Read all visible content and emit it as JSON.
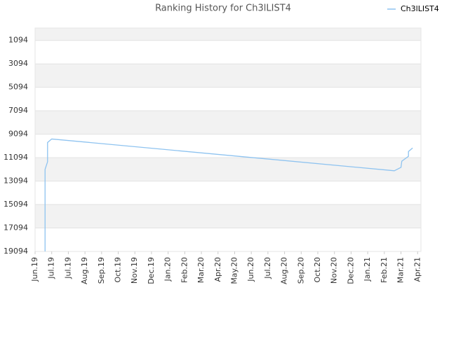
{
  "chart_data": {
    "type": "line",
    "title": "Ranking History for Ch3lLIST4",
    "xticks": [
      {
        "value": 0,
        "label": "Jun.19"
      },
      {
        "value": 1,
        "label": "Jul.19"
      },
      {
        "value": 2,
        "label": "Jul.19"
      },
      {
        "value": 3,
        "label": "Aug.19"
      },
      {
        "value": 4,
        "label": "Sep.19"
      },
      {
        "value": 5,
        "label": "Oct.19"
      },
      {
        "value": 6,
        "label": "Nov.19"
      },
      {
        "value": 7,
        "label": "Dec.19"
      },
      {
        "value": 8,
        "label": "Jan.20"
      },
      {
        "value": 9,
        "label": "Feb.20"
      },
      {
        "value": 10,
        "label": "Mar.20"
      },
      {
        "value": 11,
        "label": "Apr.20"
      },
      {
        "value": 12,
        "label": "May.20"
      },
      {
        "value": 13,
        "label": "Jun.20"
      },
      {
        "value": 14,
        "label": "Jul.20"
      },
      {
        "value": 15,
        "label": "Aug.20"
      },
      {
        "value": 16,
        "label": "Sep.20"
      },
      {
        "value": 17,
        "label": "Oct.20"
      },
      {
        "value": 18,
        "label": "Nov.20"
      },
      {
        "value": 19,
        "label": "Dec.20"
      },
      {
        "value": 20,
        "label": "Jan.21"
      },
      {
        "value": 21,
        "label": "Feb.21"
      },
      {
        "value": 22,
        "label": "Mar.21"
      },
      {
        "value": 23,
        "label": "Apr.21"
      }
    ],
    "xlim": [
      0,
      23.2
    ],
    "ylim": [
      19094,
      35
    ],
    "yticks": [
      1094,
      3094,
      5094,
      7094,
      9094,
      11094,
      13094,
      15094,
      17094,
      19094
    ],
    "grid": true,
    "legend": "top-right",
    "series": [
      {
        "name": "Ch3lLIST4",
        "color": "#8ec3f0",
        "x": [
          0.6,
          0.6,
          0.75,
          0.75,
          1.0,
          21.6,
          22.0,
          22.05,
          22.45,
          22.45,
          22.7
        ],
        "values": [
          19094,
          12094,
          11450,
          9800,
          9500,
          12210,
          11920,
          11390,
          10980,
          10570,
          10270
        ]
      }
    ]
  }
}
